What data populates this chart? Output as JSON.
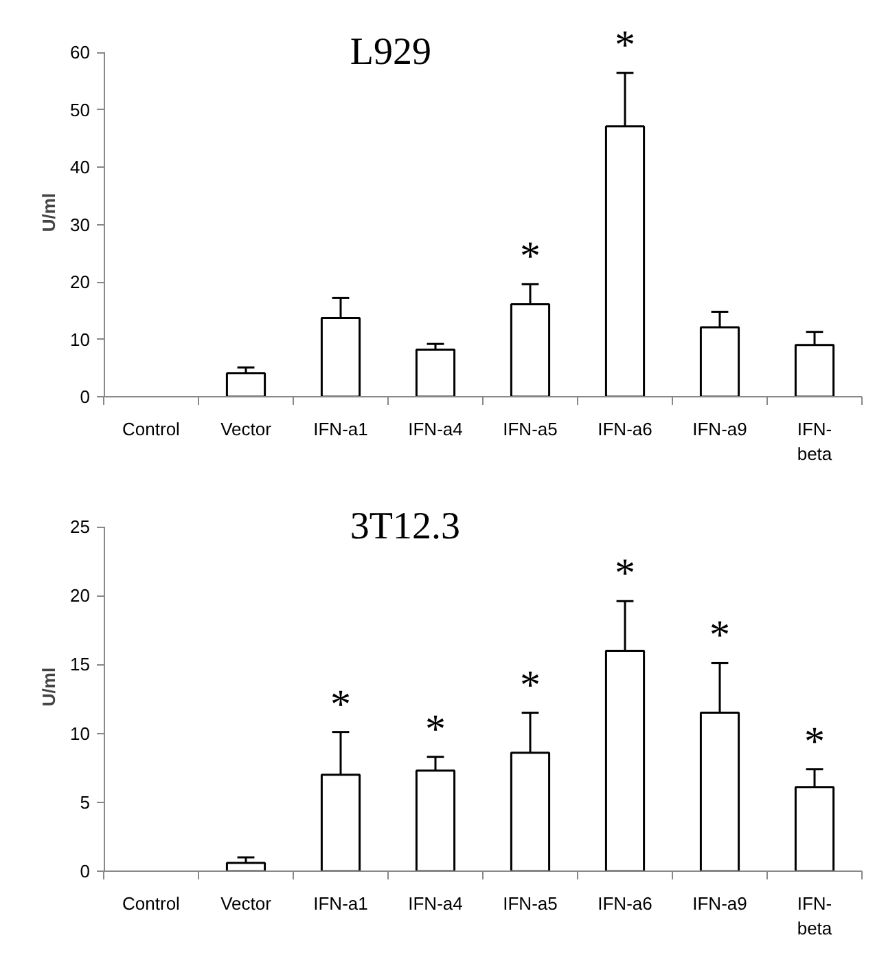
{
  "chart_data": [
    {
      "type": "bar",
      "title": "L929",
      "ylabel": "U/ml",
      "categories": [
        "Control",
        "Vector",
        "IFN-a1",
        "IFN-a4",
        "IFN-a5",
        "IFN-a6",
        "IFN-a9",
        "IFN-\nbeta"
      ],
      "series": [
        {
          "color": "#ffffff",
          "values": [
            0,
            4.1,
            13.7,
            8.2,
            16.1,
            47.1,
            12.1,
            9.0
          ],
          "errors": [
            null,
            [
              4.1,
              5.1
            ],
            [
              13.7,
              17.2
            ],
            [
              8.2,
              9.2
            ],
            [
              16.1,
              19.6
            ],
            [
              47.1,
              56.4
            ],
            [
              12.1,
              14.8
            ],
            [
              9.0,
              11.3
            ]
          ]
        }
      ],
      "ylim": [
        0,
        60
      ],
      "yticks": [
        0,
        10,
        20,
        30,
        40,
        50,
        60
      ],
      "grid": false,
      "annotations": [
        {
          "text": "*",
          "x": "IFN-a5",
          "y": 19.6
        },
        {
          "text": "*",
          "x": "IFN-a6",
          "y": 56.4
        }
      ]
    },
    {
      "type": "bar",
      "title": "3T12.3",
      "ylabel": "U/ml",
      "categories": [
        "Control",
        "Vector",
        "IFN-a1",
        "IFN-a4",
        "IFN-a5",
        "IFN-a6",
        "IFN-a9",
        "IFN-\nbeta"
      ],
      "series": [
        {
          "color": "#ffffff",
          "values": [
            0,
            0.6,
            7.0,
            7.3,
            8.6,
            16.0,
            11.5,
            6.1
          ],
          "errors": [
            null,
            [
              0.6,
              1.0
            ],
            [
              7.0,
              10.1
            ],
            [
              7.3,
              8.3
            ],
            [
              8.6,
              11.5
            ],
            [
              16.0,
              19.6
            ],
            [
              11.5,
              15.1
            ],
            [
              6.1,
              7.4
            ]
          ]
        }
      ],
      "ylim": [
        0,
        25
      ],
      "yticks": [
        0,
        5,
        10,
        15,
        20,
        25
      ],
      "grid": false,
      "annotations": [
        {
          "text": "*",
          "x": "IFN-a1",
          "y": 10.1
        },
        {
          "text": "*",
          "x": "IFN-a4",
          "y": 8.3
        },
        {
          "text": "*",
          "x": "IFN-a5",
          "y": 11.5
        },
        {
          "text": "*",
          "x": "IFN-a6",
          "y": 19.6
        },
        {
          "text": "*",
          "x": "IFN-a9",
          "y": 15.1
        },
        {
          "text": "*",
          "x": "IFN-\nbeta",
          "y": 7.4
        }
      ]
    }
  ]
}
